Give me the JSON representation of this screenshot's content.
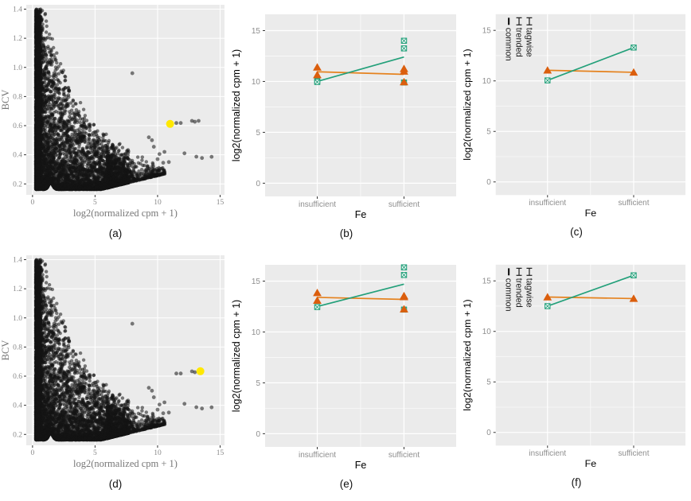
{
  "figure": {
    "captions": {
      "a": "(a)",
      "b": "(b)",
      "c": "(c)",
      "d": "(d)",
      "e": "(e)",
      "f": "(f)"
    }
  },
  "colors": {
    "panel_bg": "#EBEBEB",
    "grid": "#FFFFFF",
    "tick_mark": "#333333",
    "point": "#141414",
    "highlight": "#FFE800",
    "green": "#23A07A",
    "orange": "#DB5E0D",
    "orange_line": "#E5821E",
    "tick_label_serif": "#8A8A8A",
    "axis_title_serif": "#777777",
    "tick_label_sans": "#8E8E8E",
    "axis_title_sans": "#000000",
    "legend_text": "#1A1A1A"
  },
  "chart_data": [
    {
      "id": "a",
      "type": "scatter",
      "font": "serif",
      "xlabel": "log2(normalized cpm + 1)",
      "ylabel": "BCV",
      "xlim": [
        -0.5,
        15.35
      ],
      "ylim": [
        0.125,
        1.43
      ],
      "xticks": [
        0,
        5,
        10,
        15
      ],
      "xtick_labels": [
        "0",
        "5",
        "10",
        "15"
      ],
      "yticks": [
        0.2,
        0.4,
        0.6,
        0.8,
        1.0,
        1.2,
        1.4
      ],
      "ytick_labels": [
        "0.2",
        "0.4",
        "0.6",
        "0.8",
        "1.0",
        "1.2",
        "1.4"
      ],
      "cloud_note": "~7000 genes form a dense black decreasing wedge: BCV up to ~1.37 at low cpm, converging to ~0.17-0.35 band for cpm 1-10; drawn procedurally",
      "outliers": [
        [
          7.98,
          0.96
        ],
        [
          9.3,
          0.52
        ],
        [
          9.55,
          0.5
        ],
        [
          9.7,
          0.455
        ],
        [
          10.0,
          0.37
        ],
        [
          10.15,
          0.405
        ],
        [
          10.45,
          0.345
        ],
        [
          10.55,
          0.42
        ],
        [
          10.9,
          0.35
        ],
        [
          11.5,
          0.618
        ],
        [
          11.85,
          0.618
        ],
        [
          12.15,
          0.41
        ],
        [
          12.75,
          0.633
        ],
        [
          12.98,
          0.627
        ],
        [
          13.28,
          0.633
        ],
        [
          13.1,
          0.387
        ],
        [
          13.55,
          0.378
        ],
        [
          14.32,
          0.386
        ]
      ],
      "highlight_point": {
        "x": 11.0,
        "y": 0.612
      }
    },
    {
      "id": "b",
      "type": "line",
      "xlabel": "Fe",
      "ylabel": "log2(normalized cpm + 1)",
      "categories": [
        "insufficient",
        "sufficient"
      ],
      "ylim": [
        -1.3,
        16.6
      ],
      "yticks": [
        0,
        5,
        10,
        15
      ],
      "ytick_labels": [
        "0",
        "5",
        "10",
        "15"
      ],
      "points": [
        {
          "name": "samples-green",
          "marker": "square-x",
          "color": "green",
          "values": {
            "insufficient": [
              10.05,
              9.95
            ],
            "sufficient": [
              14.0,
              13.25,
              9.9
            ]
          }
        },
        {
          "name": "samples-orange",
          "marker": "triangle",
          "color": "orange",
          "values": {
            "insufficient": [
              11.4,
              10.65
            ],
            "sufficient": [
              11.25,
              11.0,
              9.95
            ]
          }
        }
      ],
      "lines": [
        {
          "name": "fit-orange",
          "color": "orange_line",
          "y": [
            10.95,
            10.7
          ],
          "end_markers": null
        },
        {
          "name": "fit-green",
          "color": "green",
          "y": [
            10.0,
            12.4
          ],
          "end_markers": null
        }
      ]
    },
    {
      "id": "c",
      "type": "line",
      "xlabel": "Fe",
      "ylabel": "log2(normalized cpm + 1)",
      "categories": [
        "insufficient",
        "sufficient"
      ],
      "ylim": [
        -1.3,
        16.6
      ],
      "yticks": [
        0,
        5,
        10,
        15
      ],
      "ytick_labels": [
        "0",
        "5",
        "10",
        "15"
      ],
      "points": [],
      "lines": [
        {
          "name": "fit-orange",
          "color": "orange_line",
          "y": [
            11.05,
            10.85
          ],
          "end_markers": "triangle",
          "marker_color": "orange"
        },
        {
          "name": "fit-green",
          "color": "green",
          "y": [
            10.05,
            13.3
          ],
          "end_markers": "square-x",
          "marker_color": "green"
        }
      ],
      "legend": {
        "items": [
          {
            "label": "tagwise",
            "glyph": "capped-line"
          },
          {
            "label": "trended",
            "glyph": "capped-line"
          },
          {
            "label": "common",
            "glyph": "line"
          }
        ]
      }
    },
    {
      "id": "d",
      "type": "scatter",
      "font": "serif",
      "xlabel": "log2(normalized cpm + 1)",
      "ylabel": "BCV",
      "xlim": [
        -0.5,
        15.35
      ],
      "ylim": [
        0.125,
        1.43
      ],
      "xticks": [
        0,
        5,
        10,
        15
      ],
      "xtick_labels": [
        "0",
        "5",
        "10",
        "15"
      ],
      "yticks": [
        0.2,
        0.4,
        0.6,
        0.8,
        1.0,
        1.2,
        1.4
      ],
      "ytick_labels": [
        "0.2",
        "0.4",
        "0.6",
        "0.8",
        "1.0",
        "1.2",
        "1.4"
      ],
      "cloud_note": "same point cloud as panel (a); different highlighted gene",
      "outliers": [
        [
          7.98,
          0.96
        ],
        [
          9.3,
          0.52
        ],
        [
          9.55,
          0.5
        ],
        [
          9.7,
          0.455
        ],
        [
          10.0,
          0.37
        ],
        [
          10.15,
          0.405
        ],
        [
          10.45,
          0.345
        ],
        [
          10.55,
          0.42
        ],
        [
          10.9,
          0.35
        ],
        [
          11.5,
          0.618
        ],
        [
          11.85,
          0.618
        ],
        [
          12.15,
          0.41
        ],
        [
          12.75,
          0.633
        ],
        [
          12.98,
          0.627
        ],
        [
          13.28,
          0.633
        ],
        [
          13.1,
          0.387
        ],
        [
          13.55,
          0.378
        ],
        [
          14.32,
          0.386
        ]
      ],
      "highlight_point": {
        "x": 13.42,
        "y": 0.634
      }
    },
    {
      "id": "e",
      "type": "line",
      "xlabel": "Fe",
      "ylabel": "log2(normalized cpm + 1)",
      "categories": [
        "insufficient",
        "sufficient"
      ],
      "ylim": [
        -1.3,
        16.6
      ],
      "yticks": [
        0,
        5,
        10,
        15
      ],
      "ytick_labels": [
        "0",
        "5",
        "10",
        "15"
      ],
      "points": [
        {
          "name": "samples-green",
          "marker": "square-x",
          "color": "green",
          "values": {
            "insufficient": [
              12.45
            ],
            "sufficient": [
              16.35,
              15.6,
              12.2
            ]
          }
        },
        {
          "name": "samples-orange",
          "marker": "triangle",
          "color": "orange",
          "values": {
            "insufficient": [
              13.85,
              13.1
            ],
            "sufficient": [
              13.55,
              13.45,
              12.25
            ]
          }
        }
      ],
      "lines": [
        {
          "name": "fit-orange",
          "color": "orange_line",
          "y": [
            13.4,
            13.2
          ],
          "end_markers": null
        },
        {
          "name": "fit-green",
          "color": "green",
          "y": [
            12.5,
            14.7
          ],
          "end_markers": null
        }
      ]
    },
    {
      "id": "f",
      "type": "line",
      "xlabel": "Fe",
      "ylabel": "log2(normalized cpm + 1)",
      "categories": [
        "insufficient",
        "sufficient"
      ],
      "ylim": [
        -1.3,
        16.6
      ],
      "yticks": [
        0,
        5,
        10,
        15
      ],
      "ytick_labels": [
        "0",
        "5",
        "10",
        "15"
      ],
      "points": [],
      "lines": [
        {
          "name": "fit-orange",
          "color": "orange_line",
          "y": [
            13.4,
            13.25
          ],
          "end_markers": "triangle",
          "marker_color": "orange"
        },
        {
          "name": "fit-green",
          "color": "green",
          "y": [
            12.5,
            15.55
          ],
          "end_markers": "square-x",
          "marker_color": "green"
        }
      ],
      "legend": {
        "items": [
          {
            "label": "tagwise",
            "glyph": "capped-line"
          },
          {
            "label": "trended",
            "glyph": "capped-line"
          },
          {
            "label": "common",
            "glyph": "line"
          }
        ]
      }
    }
  ]
}
